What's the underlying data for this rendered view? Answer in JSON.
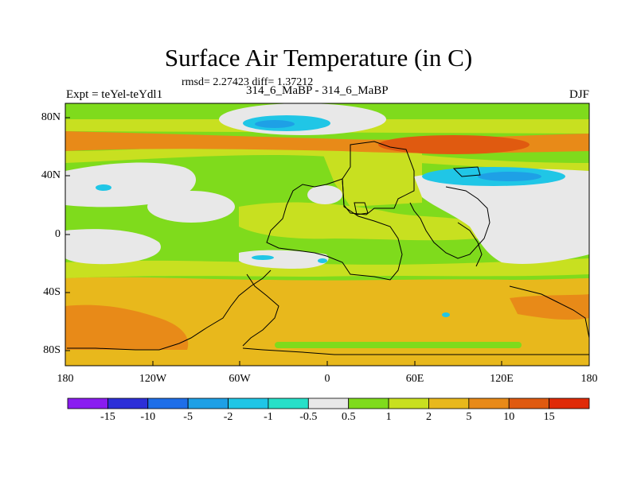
{
  "title": "Surface Air Temperature (in C)",
  "subtitle_stats": "rmsd= 2.27423  diff= 1.37212",
  "expt_label": "Expt = teYel-teYdl1",
  "experiment_names": "314_6_MaBP - 314_6_MaBP",
  "season": "DJF",
  "axes": {
    "x_ticks": [
      "180",
      "120W",
      "60W",
      "0",
      "60E",
      "120E",
      "180"
    ],
    "y_ticks": [
      "80N",
      "40N",
      "0",
      "40S",
      "80S"
    ]
  },
  "colorbar": {
    "labels": [
      "-15",
      "-10",
      "-5",
      "-2",
      "-1",
      "-0.5",
      "0.5",
      "1",
      "2",
      "5",
      "10",
      "15"
    ],
    "colors": [
      "#8a1cf0",
      "#2d2fd8",
      "#1e6ee8",
      "#1ea0e6",
      "#20c6e6",
      "#28e0c8",
      "#e8e8e8",
      "#7fdb1c",
      "#c8e020",
      "#e8b81c",
      "#e88a18",
      "#e05a10",
      "#e02a08"
    ]
  },
  "field_colors": {
    "neutral": "#e8e8e8",
    "light_green": "#7fdb1c",
    "yellow_green": "#c8e020",
    "orange_yellow": "#e8b81c",
    "orange": "#e88a18",
    "dark_orange": "#e05a10",
    "cyan": "#20c6e6",
    "light_blue": "#1ea0e6"
  }
}
